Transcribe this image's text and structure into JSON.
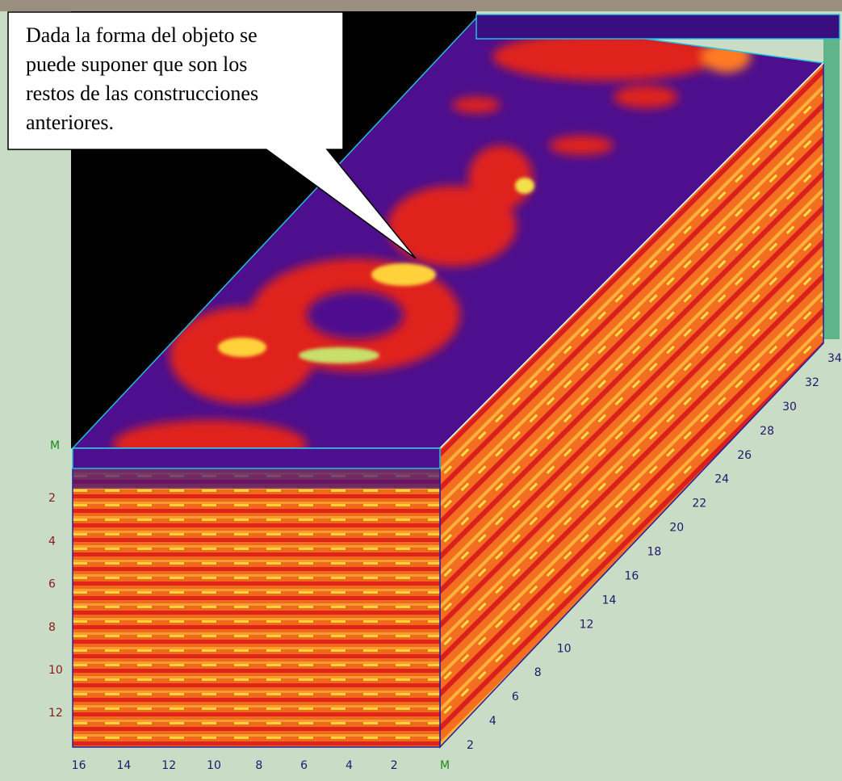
{
  "callout": {
    "lines": [
      "Dada la forma del objeto se",
      "puede suponer  que son los",
      "restos de las construcciones",
      "anteriores."
    ]
  },
  "depth_axis": {
    "unit": "M",
    "ticks": [
      2,
      4,
      6,
      8,
      10,
      12
    ]
  },
  "width_axis": {
    "unit": "M",
    "ticks": [
      16,
      14,
      12,
      10,
      8,
      6,
      4,
      2
    ]
  },
  "length_axis": {
    "ticks": [
      2,
      4,
      6,
      8,
      10,
      12,
      14,
      16,
      18,
      20,
      22,
      24,
      26,
      28,
      30,
      32,
      34
    ]
  }
}
